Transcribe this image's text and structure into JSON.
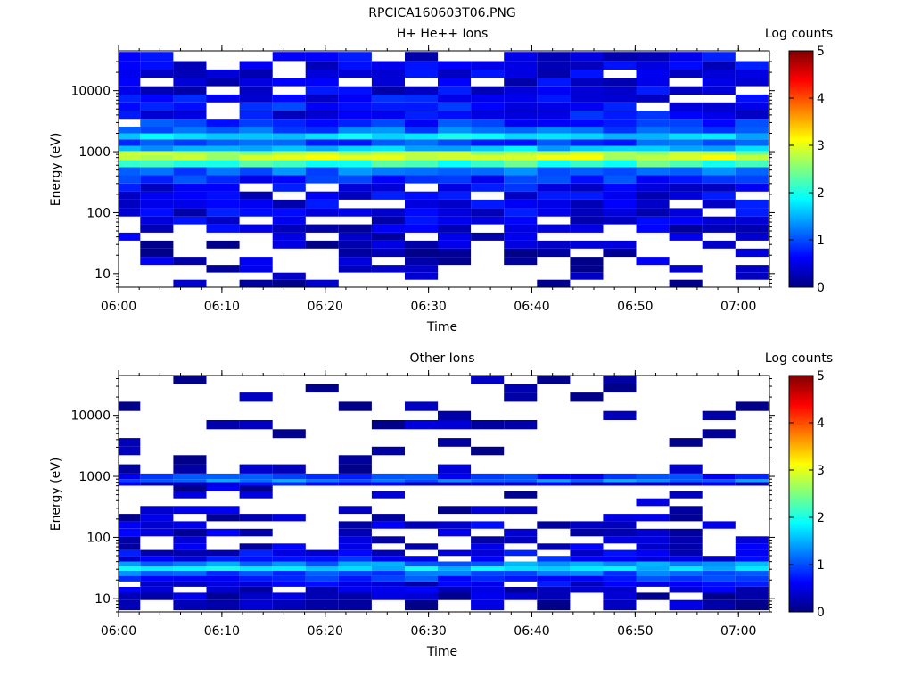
{
  "figure": {
    "title": "RPCICA160603T06.PNG"
  },
  "colors": {
    "colormap_stops": [
      "#00007f",
      "#0000ff",
      "#007fff",
      "#00ffff",
      "#7fff7f",
      "#ffff00",
      "#ff7f00",
      "#ff0000",
      "#7f0000"
    ]
  },
  "chart_data": [
    {
      "type": "heatmap",
      "title": "H+ He++ Ions",
      "xlabel": "Time",
      "ylabel": "Energy (eV)",
      "yscale": "log",
      "xlim": [
        "06:00",
        "07:03"
      ],
      "ylim": [
        6,
        45000
      ],
      "xticks": [
        "06:00",
        "06:10",
        "06:20",
        "06:30",
        "06:40",
        "06:50",
        "07:00"
      ],
      "yticks": [
        "10",
        "100",
        "1000",
        "10000"
      ],
      "colorbar": {
        "label": "Log counts",
        "range": [
          0,
          5
        ],
        "ticks": [
          "0",
          "1",
          "2",
          "3",
          "4",
          "5"
        ]
      },
      "time_bins_min": [
        0.5,
        3.7,
        6.9,
        10.1,
        13.3,
        16.5,
        19.7,
        22.9,
        26.1,
        29.3,
        32.5,
        35.7,
        38.9,
        42.1,
        45.3,
        48.5,
        51.7,
        54.9,
        58.1,
        61.3
      ],
      "profile": {
        "note_energy_eV": [
          7,
          9,
          12,
          16,
          22,
          30,
          40,
          55,
          75,
          100,
          140,
          190,
          260,
          350,
          480,
          650,
          820,
          950,
          1100,
          1400,
          1800,
          2200,
          3000,
          4000,
          5500,
          7500,
          10000,
          14000,
          19000,
          26000,
          36000
        ],
        "log_counts_typical": [
          0.2,
          0.2,
          0.3,
          0.3,
          0.3,
          0.3,
          0.4,
          0.4,
          0.5,
          0.5,
          0.5,
          0.5,
          0.6,
          0.8,
          1.1,
          2.2,
          2.9,
          2.6,
          1.6,
          1.0,
          1.7,
          1.1,
          0.8,
          0.6,
          0.7,
          0.6,
          0.5,
          0.5,
          0.5,
          0.5,
          0.5
        ],
        "occupancy": [
          0.25,
          0.3,
          0.4,
          0.45,
          0.55,
          0.6,
          0.65,
          0.7,
          0.8,
          0.85,
          0.85,
          0.9,
          0.9,
          0.95,
          1,
          1,
          1,
          1,
          1,
          1,
          1,
          1,
          0.95,
          0.9,
          0.9,
          0.9,
          0.85,
          0.85,
          0.8,
          0.8,
          0.75
        ]
      }
    },
    {
      "type": "heatmap",
      "title": "Other Ions",
      "xlabel": "Time",
      "ylabel": "Energy (eV)",
      "yscale": "log",
      "xlim": [
        "06:00",
        "07:03"
      ],
      "ylim": [
        6,
        45000
      ],
      "xticks": [
        "06:00",
        "06:10",
        "06:20",
        "06:30",
        "06:40",
        "06:50",
        "07:00"
      ],
      "yticks": [
        "10",
        "100",
        "1000",
        "10000"
      ],
      "colorbar": {
        "label": "Log counts",
        "range": [
          0,
          5
        ],
        "ticks": [
          "0",
          "1",
          "2",
          "3",
          "4",
          "5"
        ]
      },
      "time_bins_min": [
        0.5,
        3.7,
        6.9,
        10.1,
        13.3,
        16.5,
        19.7,
        22.9,
        26.1,
        29.3,
        32.5,
        35.7,
        38.9,
        42.1,
        45.3,
        48.5,
        51.7,
        54.9,
        58.1,
        61.3
      ],
      "profile": {
        "note_energy_eV": [
          8,
          11,
          14,
          17,
          21,
          26,
          31,
          36,
          45,
          55,
          70,
          90,
          120,
          160,
          210,
          280,
          380,
          500,
          650,
          760,
          850,
          950,
          1300,
          1900,
          2600,
          3600,
          5000,
          7000,
          10000,
          14000,
          20000,
          28000,
          38000
        ],
        "log_counts_typical": [
          0.3,
          0.3,
          0.4,
          0.5,
          0.8,
          1.1,
          1.7,
          1.3,
          0.6,
          0.5,
          0.4,
          0.4,
          0.4,
          0.4,
          0.3,
          0.3,
          0.3,
          0.3,
          0.3,
          0.6,
          1.2,
          0.8,
          0.2,
          0.2,
          0.2,
          0.2,
          0.2,
          0.2,
          0.2,
          0.2,
          0.2,
          0.2,
          0.2
        ],
        "occupancy": [
          0.75,
          0.75,
          0.75,
          0.85,
          1,
          1,
          1,
          1,
          0.8,
          0.75,
          0.7,
          0.65,
          0.6,
          0.55,
          0.45,
          0.35,
          0.25,
          0.15,
          0.2,
          1,
          1,
          1,
          0.25,
          0.2,
          0.15,
          0.12,
          0.12,
          0.12,
          0.12,
          0.12,
          0.1,
          0.1,
          0.08
        ]
      }
    }
  ]
}
